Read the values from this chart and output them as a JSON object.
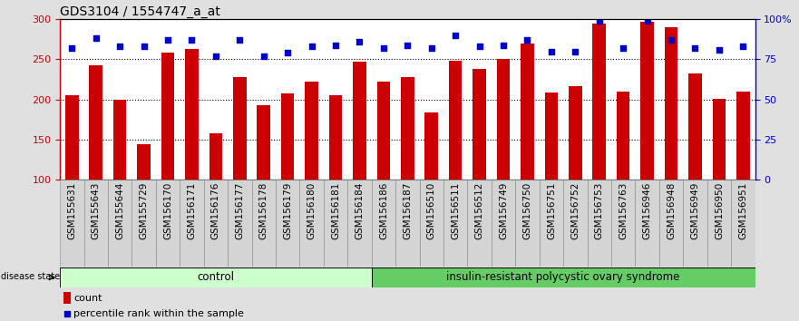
{
  "title": "GDS3104 / 1554747_a_at",
  "samples": [
    "GSM155631",
    "GSM155643",
    "GSM155644",
    "GSM155729",
    "GSM156170",
    "GSM156171",
    "GSM156176",
    "GSM156177",
    "GSM156178",
    "GSM156179",
    "GSM156180",
    "GSM156181",
    "GSM156184",
    "GSM156186",
    "GSM156187",
    "GSM156510",
    "GSM156511",
    "GSM156512",
    "GSM156749",
    "GSM156750",
    "GSM156751",
    "GSM156752",
    "GSM156753",
    "GSM156763",
    "GSM156946",
    "GSM156948",
    "GSM156949",
    "GSM156950",
    "GSM156951"
  ],
  "counts": [
    205,
    243,
    200,
    144,
    258,
    263,
    158,
    228,
    193,
    208,
    222,
    205,
    247,
    222,
    228,
    184,
    248,
    238,
    251,
    270,
    209,
    217,
    295,
    210,
    297,
    290,
    232,
    201,
    210
  ],
  "percentiles": [
    82,
    88,
    83,
    83,
    87,
    87,
    77,
    87,
    77,
    79,
    83,
    84,
    86,
    82,
    84,
    82,
    90,
    83,
    84,
    87,
    80,
    80,
    99,
    82,
    99,
    87,
    82,
    81,
    83
  ],
  "control_count": 13,
  "group1_label": "control",
  "group2_label": "insulin-resistant polycystic ovary syndrome",
  "group1_color": "#ccffcc",
  "group2_color": "#66cc66",
  "bar_color": "#cc0000",
  "dot_color": "#0000cc",
  "y_min": 100,
  "y_max": 300,
  "y_ticks_left": [
    100,
    150,
    200,
    250,
    300
  ],
  "y_ticks_right": [
    0,
    25,
    50,
    75,
    100
  ],
  "y_right_labels": [
    "0",
    "25",
    "50",
    "75",
    "100%"
  ],
  "disease_state_label": "disease state",
  "legend_count_label": "count",
  "legend_pct_label": "percentile rank within the sample",
  "background_color": "#e0e0e0",
  "plot_bg_color": "#ffffff",
  "title_fontsize": 10,
  "axis_tick_fontsize": 8,
  "label_fontsize": 7.5,
  "bar_width": 0.55
}
